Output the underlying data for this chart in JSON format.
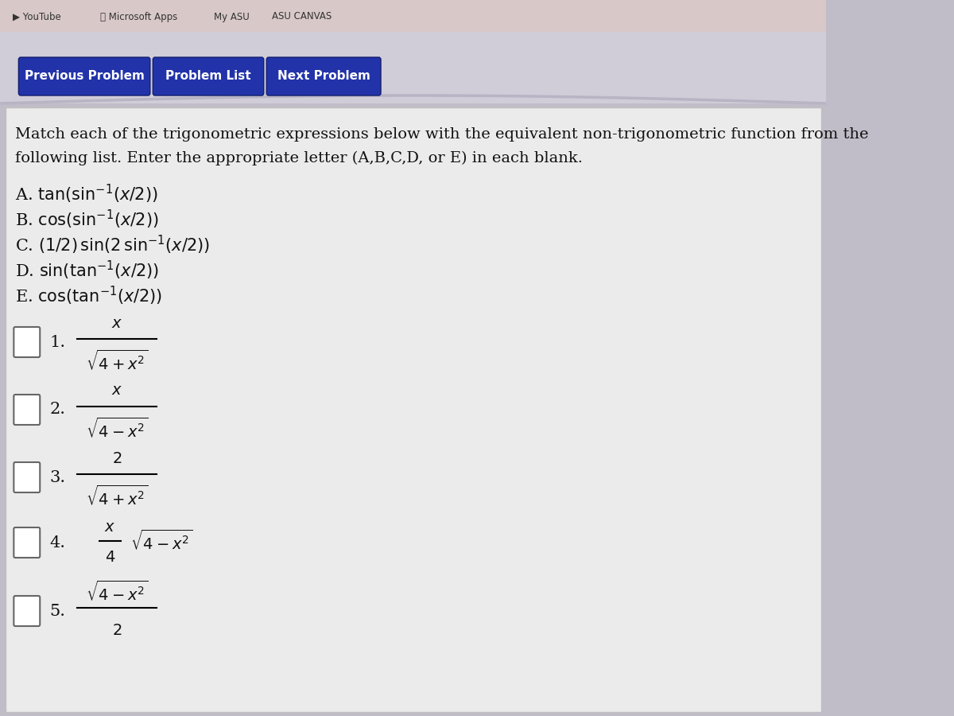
{
  "bg_outer": "#c0bcc8",
  "bg_nav_strip": "#d4d0dc",
  "bg_content": "#f0f0f0",
  "bg_browser_bar": "#e0dce8",
  "button_color": "#2233aa",
  "button_text_color": "#ffffff",
  "buttons": [
    "Previous Problem",
    "Problem List",
    "Next Problem"
  ],
  "instruction_line1": "Match each of the trigonometric expressions below with the equivalent non-trigonometric function from the",
  "instruction_line2": "following list. Enter the appropriate letter (A,B,C,D, or E) in each blank.",
  "text_color": "#111111",
  "content_bg": "#f2f2f2",
  "content_border": "#cccccc"
}
